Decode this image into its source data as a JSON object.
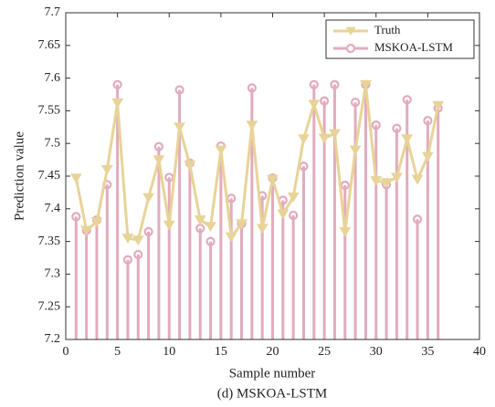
{
  "chart_data": {
    "type": "line",
    "title": "(d) MSKOA-LSTM",
    "xlabel": "Sample number",
    "ylabel": "Prediction value",
    "x": [
      1,
      2,
      3,
      4,
      5,
      6,
      7,
      8,
      9,
      10,
      11,
      12,
      13,
      14,
      15,
      16,
      17,
      18,
      19,
      20,
      21,
      22,
      23,
      24,
      25,
      26,
      27,
      28,
      29,
      30,
      31,
      32,
      33,
      34,
      35,
      36
    ],
    "series": [
      {
        "name": "Truth",
        "color": "#e8d398",
        "marker": "triangle-down",
        "values": [
          7.447,
          7.367,
          7.38,
          7.46,
          7.562,
          7.355,
          7.352,
          7.417,
          7.475,
          7.375,
          7.525,
          7.467,
          7.383,
          7.373,
          7.49,
          7.357,
          7.377,
          7.528,
          7.37,
          7.445,
          7.392,
          7.418,
          7.507,
          7.56,
          7.508,
          7.515,
          7.365,
          7.49,
          7.59,
          7.443,
          7.44,
          7.448,
          7.507,
          7.445,
          7.48,
          7.558
        ]
      },
      {
        "name": "MSKOA-LSTM",
        "color": "#e2abbd",
        "marker": "stem",
        "values": [
          7.388,
          7.367,
          7.383,
          7.437,
          7.59,
          7.322,
          7.33,
          7.365,
          7.495,
          7.448,
          7.582,
          7.47,
          7.37,
          7.35,
          7.496,
          7.416,
          7.377,
          7.585,
          7.42,
          7.447,
          7.413,
          7.39,
          7.465,
          7.59,
          7.565,
          7.59,
          7.436,
          7.563,
          7.59,
          7.528,
          7.437,
          7.523,
          7.567,
          7.384,
          7.535,
          7.554
        ]
      }
    ],
    "xlim": [
      0,
      40
    ],
    "xticks": [
      0,
      5,
      10,
      15,
      20,
      25,
      30,
      35,
      40
    ],
    "ylim": [
      7.2,
      7.7
    ],
    "yticks": [
      7.2,
      7.25,
      7.3,
      7.35,
      7.4,
      7.45,
      7.5,
      7.55,
      7.6,
      7.65,
      7.7
    ],
    "legend": "upper right"
  }
}
